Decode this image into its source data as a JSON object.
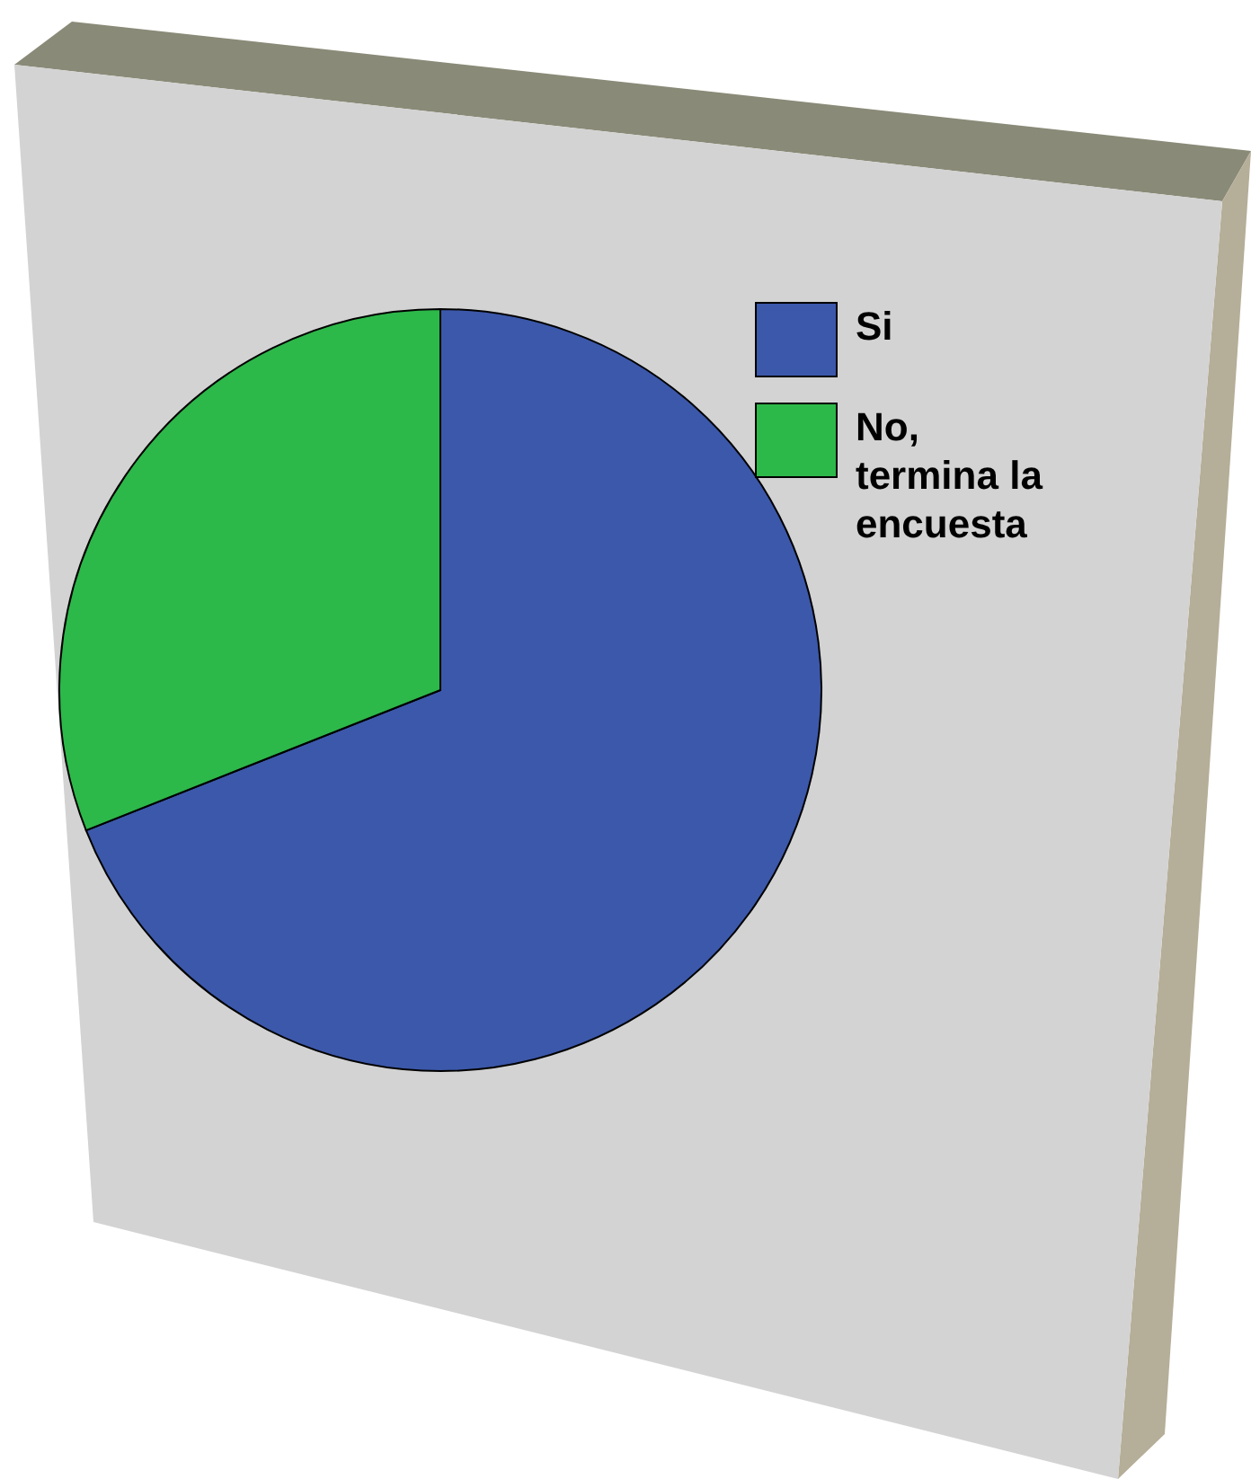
{
  "chart_data": {
    "type": "pie",
    "categories": [
      "Si",
      "No, termina la encuesta"
    ],
    "values": [
      69,
      31
    ],
    "colors": [
      "#3c58aa",
      "#2db84a"
    ],
    "legend": "top right"
  }
}
